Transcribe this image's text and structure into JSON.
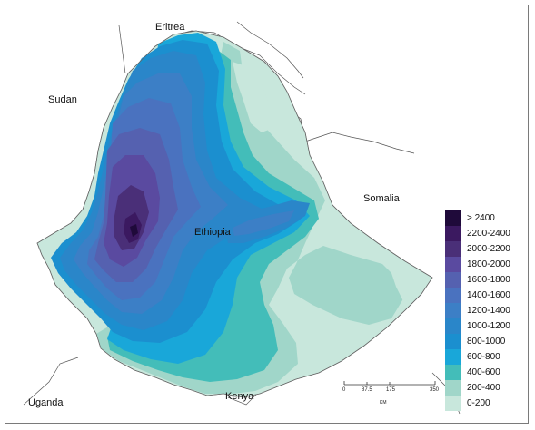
{
  "map": {
    "place_labels": {
      "eritrea": "Eritrea",
      "sudan": "Sudan",
      "somalia": "Somalia",
      "ethiopia": "Ethiopia",
      "uganda": "Uganda",
      "kenya": "Kenya"
    },
    "colors": {
      "over_2400": "#1f0a3a",
      "c2200_2400": "#3b1960",
      "c2000_2200": "#4a2f78",
      "c1800_2000": "#5a4aa0",
      "c1600_1800": "#5561b0",
      "c1400_1600": "#4a72bf",
      "c1200_1400": "#3c7fc6",
      "c1000_1200": "#2a86c9",
      "c800_1000": "#1b8fcf",
      "c600_800": "#19a7d9",
      "c400_600": "#43bdb9",
      "c200_400": "#a0d6c9",
      "c0_200": "#c8e7dc",
      "border": "#555555"
    }
  },
  "legend": {
    "items": [
      {
        "label": "> 2400",
        "color": "#1f0a3a"
      },
      {
        "label": "2200-2400",
        "color": "#3b1960"
      },
      {
        "label": "2000-2200",
        "color": "#4a2f78"
      },
      {
        "label": "1800-2000",
        "color": "#5a4aa0"
      },
      {
        "label": "1600-1800",
        "color": "#5561b0"
      },
      {
        "label": "1400-1600",
        "color": "#4a72bf"
      },
      {
        "label": "1200-1400",
        "color": "#3c7fc6"
      },
      {
        "label": "1000-1200",
        "color": "#2a86c9"
      },
      {
        "label": "800-1000",
        "color": "#1b8fcf"
      },
      {
        "label": "600-800",
        "color": "#19a7d9"
      },
      {
        "label": "400-600",
        "color": "#43bdb9"
      },
      {
        "label": "200-400",
        "color": "#a0d6c9"
      },
      {
        "label": "0-200",
        "color": "#c8e7dc"
      }
    ]
  },
  "scale": {
    "ticks": [
      "0",
      "87.5",
      "175",
      "350"
    ],
    "unit": "KM"
  }
}
